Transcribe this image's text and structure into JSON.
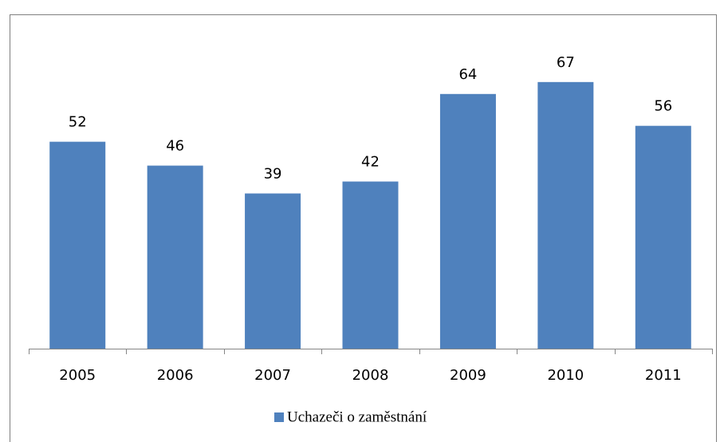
{
  "chart_data": {
    "type": "bar",
    "categories": [
      "2005",
      "2006",
      "2007",
      "2008",
      "2009",
      "2010",
      "2011"
    ],
    "series": [
      {
        "name": "Uchazeči o zaměstnání",
        "color": "#4f81bd",
        "values": [
          52,
          46,
          39,
          42,
          64,
          67,
          56
        ]
      }
    ],
    "ylim": [
      0,
      80
    ],
    "legend": "bottom"
  }
}
